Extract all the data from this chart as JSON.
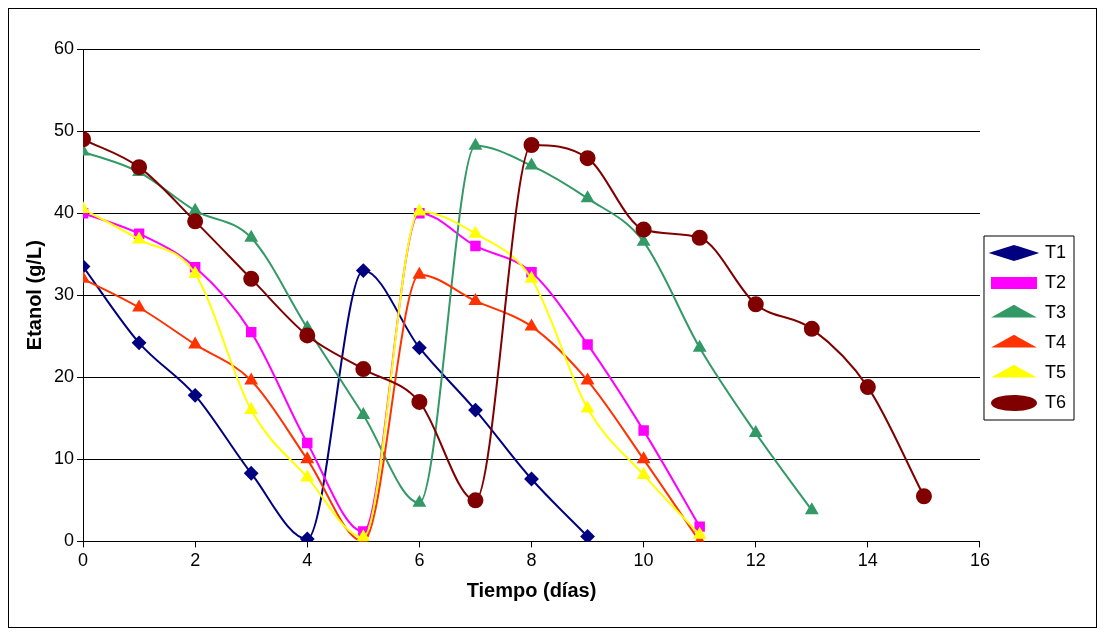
{
  "chart_data": {
    "type": "line",
    "xlabel": "Tiempo (días)",
    "ylabel": "Etanol (g/L)",
    "xlim": [
      0,
      16
    ],
    "xticks": [
      0,
      2,
      4,
      6,
      8,
      10,
      12,
      14,
      16
    ],
    "ylim": [
      0,
      60
    ],
    "yticks": [
      0,
      10,
      20,
      30,
      40,
      50,
      60
    ],
    "grid": "y",
    "legend": "right",
    "series": [
      {
        "name": "T1",
        "color": "#000080",
        "marker": "diamond",
        "x": [
          0,
          1,
          2,
          3,
          4,
          5,
          6,
          7,
          8,
          9
        ],
        "values": [
          33.5,
          24.2,
          17.8,
          8.3,
          0.3,
          33,
          23.6,
          16,
          7.6,
          0.6
        ]
      },
      {
        "name": "T2",
        "color": "#ff00ff",
        "marker": "square",
        "x": [
          0,
          1,
          2,
          3,
          4,
          5,
          6,
          7,
          8,
          9,
          10,
          11
        ],
        "values": [
          40,
          37.5,
          33.4,
          25.5,
          12,
          1.2,
          40,
          36,
          32.8,
          24,
          13.5,
          1.8
        ]
      },
      {
        "name": "T3",
        "color": "#339966",
        "marker": "triangle",
        "x": [
          0,
          1,
          2,
          3,
          4,
          5,
          6,
          7,
          8,
          9,
          10,
          11,
          12,
          13
        ],
        "values": [
          47.5,
          45,
          40.3,
          37,
          26,
          15.4,
          4.7,
          48.2,
          45.8,
          41.8,
          36.5,
          23.6,
          13.2,
          3.8
        ]
      },
      {
        "name": "T4",
        "color": "#ff3300",
        "marker": "triangle",
        "x": [
          0,
          1,
          2,
          3,
          4,
          5,
          6,
          7,
          8,
          9,
          10,
          11
        ],
        "values": [
          32,
          28.5,
          24,
          19.6,
          10,
          0,
          32.5,
          29.3,
          26.2,
          19.6,
          10,
          0
        ]
      },
      {
        "name": "T5",
        "color": "#ffff00",
        "marker": "triangle",
        "x": [
          0,
          1,
          2,
          3,
          4,
          5,
          6,
          7,
          8,
          9,
          10,
          11
        ],
        "values": [
          40.5,
          36.8,
          32.6,
          16,
          7.8,
          0.5,
          40.2,
          37.5,
          32,
          16.2,
          8.1,
          0.8
        ]
      },
      {
        "name": "T6",
        "color": "#800000",
        "marker": "circle",
        "x": [
          0,
          1,
          2,
          3,
          4,
          5,
          6,
          7,
          8,
          9,
          10,
          11,
          12,
          13,
          14,
          15
        ],
        "values": [
          49,
          45.6,
          39,
          32,
          25.1,
          21,
          17,
          5,
          48.3,
          46.7,
          38,
          37,
          28.9,
          25.9,
          18.8,
          5.5
        ]
      }
    ]
  }
}
